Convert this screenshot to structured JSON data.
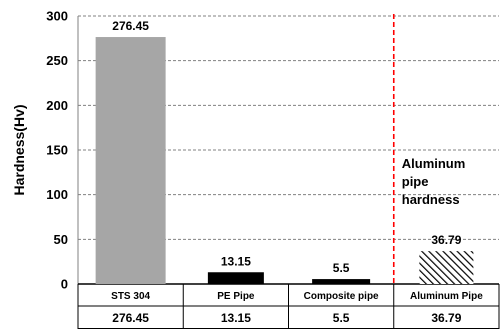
{
  "chart_data": {
    "type": "bar",
    "categories": [
      "STS 304",
      "PE Pipe",
      "Composite pipe",
      "Aluminum Pipe"
    ],
    "values": [
      276.45,
      13.15,
      5.5,
      36.79
    ],
    "value_labels": [
      "276.45",
      "13.15",
      "5.5",
      "36.79"
    ],
    "table_values": [
      "276.45",
      "13.15",
      "5.5",
      "36.79"
    ],
    "ylabel": "Hardness(Hv)",
    "ylim": [
      0,
      300
    ],
    "yticks": [
      0,
      50,
      100,
      150,
      200,
      250,
      300
    ],
    "grid": "horizontal dashed",
    "bar_styles": [
      "solid",
      "solid",
      "solid",
      "hatched"
    ],
    "bar_colors": [
      "#a6a6a6",
      "#000000",
      "#000000",
      "#000000"
    ],
    "annotation": {
      "lines": [
        "Aluminum",
        "pipe",
        "hardness"
      ],
      "color": "#ff0000",
      "style": "dashed vertical line"
    }
  }
}
